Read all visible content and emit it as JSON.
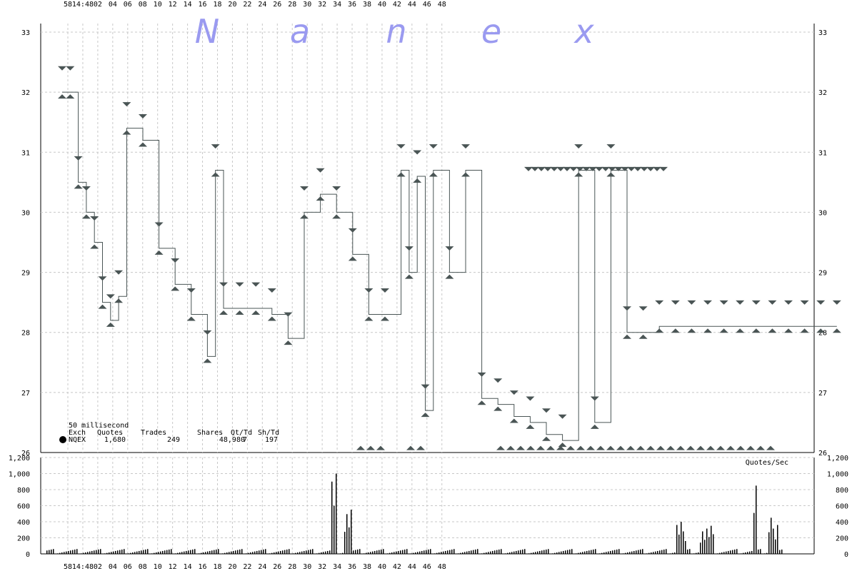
{
  "watermark": [
    "N",
    "a",
    "n",
    "e",
    "x"
  ],
  "info": {
    "interval": "50 millisecond",
    "headers": [
      "Exch",
      "Quotes",
      "Trades",
      "Shares",
      "Qt/Td",
      "Sh/Td"
    ],
    "row": [
      "NQEX",
      "1,680",
      "249",
      "48,980",
      "7",
      "197"
    ]
  },
  "volume_label": "Quotes/Sec",
  "colors": {
    "marker": "#4a5555",
    "line": "#4a5555",
    "volume": "#000000",
    "watermark": "#9a9af0"
  },
  "chart_data": [
    {
      "type": "line",
      "title": "",
      "xlabel": "",
      "ylabel": "",
      "x_ticks": [
        "58",
        "14:48",
        "02",
        "04",
        "06",
        "08",
        "10",
        "12",
        "14",
        "16",
        "18",
        "20",
        "22",
        "24",
        "26",
        "28",
        "30",
        "32",
        "34",
        "36",
        "38",
        "40",
        "42",
        "44",
        "46",
        "48"
      ],
      "ylim": [
        26,
        33
      ],
      "y_ticks": [
        "26",
        "27",
        "28",
        "29",
        "30",
        "31",
        "32",
        "33"
      ],
      "grid": true,
      "series": [
        {
          "x": [
            48,
            49,
            50,
            51,
            52,
            53,
            54,
            55,
            56,
            58,
            60,
            62,
            64,
            66,
            67,
            68,
            70,
            72,
            74,
            76,
            78,
            80,
            82,
            84,
            86,
            88,
            90,
            91,
            92,
            93,
            94,
            96,
            98,
            100,
            102,
            104,
            106,
            108,
            110,
            112,
            114,
            116,
            118,
            120,
            122,
            124,
            126,
            128,
            130,
            132,
            134,
            136,
            138,
            140,
            142,
            144
          ],
          "y": [
            32.0,
            32.0,
            30.5,
            30.0,
            29.5,
            28.5,
            28.2,
            28.6,
            31.4,
            31.2,
            29.4,
            28.8,
            28.3,
            27.6,
            30.7,
            28.4,
            28.4,
            28.4,
            28.3,
            27.9,
            30.0,
            30.3,
            30.0,
            29.3,
            28.3,
            28.3,
            30.7,
            29.0,
            30.6,
            26.7,
            30.7,
            29.0,
            30.7,
            26.9,
            26.8,
            26.6,
            26.5,
            26.3,
            26.2,
            30.7,
            26.5,
            30.7,
            28.0,
            28.0,
            28.1,
            28.1,
            28.1,
            28.1,
            28.1,
            28.1,
            28.1,
            28.1,
            28.1,
            28.1,
            28.1,
            28.1
          ]
        }
      ]
    },
    {
      "type": "bar",
      "title": "",
      "ylabel": "Quotes/Sec",
      "ylim": [
        0,
        1200
      ],
      "y_ticks": [
        "0",
        "200",
        "400",
        "600",
        "800",
        "1,000",
        "1,200"
      ],
      "grid": true
    }
  ]
}
